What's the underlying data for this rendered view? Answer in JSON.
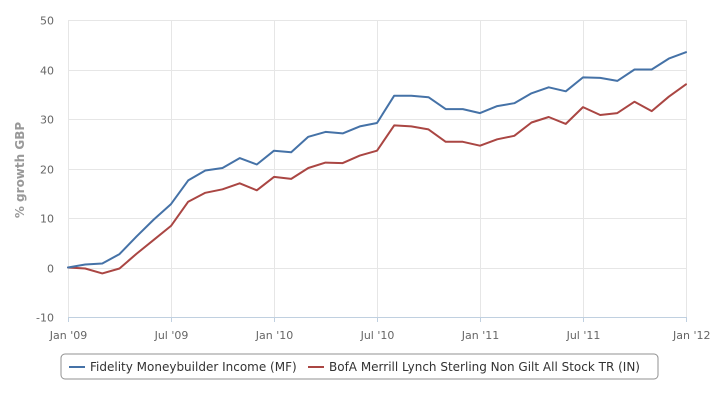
{
  "chart_data": {
    "type": "line",
    "ylabel": "% growth GBP",
    "xlabel": "",
    "ylim": [
      -10,
      50
    ],
    "yticks": [
      -10,
      0,
      10,
      20,
      30,
      40,
      50
    ],
    "xticks": [
      "Jan '09",
      "Jul '09",
      "Jan '10",
      "Jul '10",
      "Jan '11",
      "Jul '11",
      "Jan '12"
    ],
    "x_range_months": [
      0,
      36
    ],
    "grid": "horizontal and vertical",
    "legend_position": "bottom",
    "series": [
      {
        "name": "Fidelity Moneybuilder Income (MF)",
        "color": "#4572A7",
        "x": [
          0,
          1,
          2,
          3,
          4,
          5,
          6,
          7,
          8,
          9,
          10,
          11,
          12,
          13,
          14,
          15,
          16,
          17,
          18,
          19,
          20,
          21,
          22,
          23,
          24,
          25,
          26,
          27,
          28,
          29,
          30,
          31,
          32,
          33,
          34,
          35,
          36
        ],
        "values": [
          0.0,
          0.6,
          0.8,
          2.7,
          6.3,
          9.7,
          12.8,
          17.6,
          19.6,
          20.1,
          22.1,
          20.8,
          23.6,
          23.3,
          26.4,
          27.4,
          27.1,
          28.5,
          29.2,
          34.7,
          34.7,
          34.4,
          32.0,
          32.0,
          31.2,
          32.6,
          33.2,
          35.2,
          36.4,
          35.6,
          38.4,
          38.3,
          37.7,
          40.0,
          40.0,
          42.2,
          43.5
        ]
      },
      {
        "name": "BofA Merrill Lynch Sterling Non Gilt All Stock TR (IN)",
        "color": "#AA4643",
        "x": [
          0,
          1,
          2,
          3,
          4,
          5,
          6,
          7,
          8,
          9,
          10,
          11,
          12,
          13,
          14,
          15,
          16,
          17,
          18,
          19,
          20,
          21,
          22,
          23,
          24,
          25,
          26,
          27,
          28,
          29,
          30,
          31,
          32,
          33,
          34,
          35,
          36
        ],
        "values": [
          0.0,
          -0.2,
          -1.2,
          -0.2,
          2.8,
          5.6,
          8.4,
          13.3,
          15.1,
          15.8,
          17.0,
          15.6,
          18.3,
          17.9,
          20.1,
          21.2,
          21.1,
          22.6,
          23.6,
          28.7,
          28.5,
          27.9,
          25.4,
          25.4,
          24.6,
          25.9,
          26.6,
          29.3,
          30.4,
          29.0,
          32.4,
          30.8,
          31.2,
          33.5,
          31.6,
          34.5,
          37.0
        ]
      }
    ]
  },
  "colors": {
    "grid": "#e6e6e6",
    "axis": "#c0d0e0",
    "legend_border": "#909090"
  }
}
